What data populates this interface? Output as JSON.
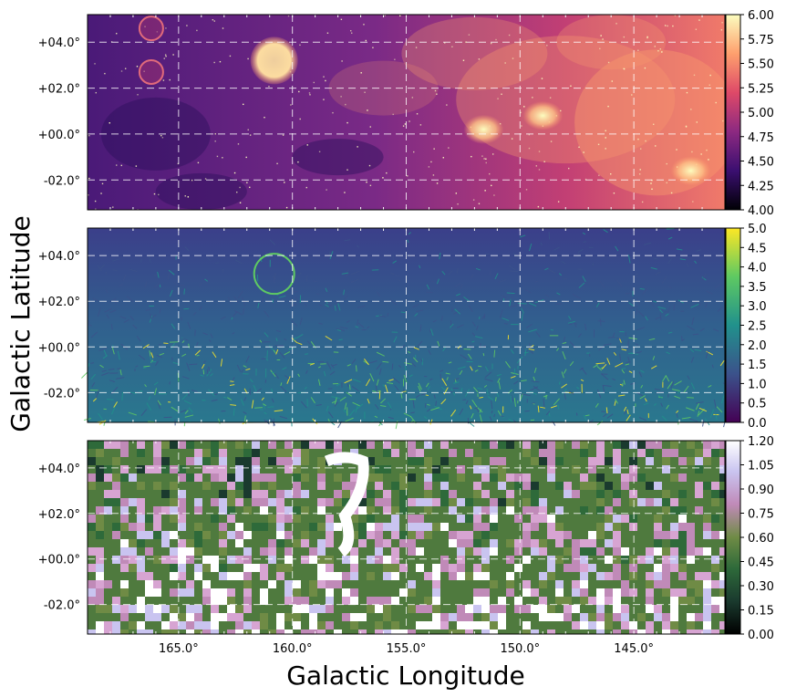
{
  "chart_data": {
    "type": "heatmap",
    "xlabel": "Galactic Longitude",
    "ylabel": "Galactic Latitude",
    "xlim": [
      169.0,
      141.0
    ],
    "ylim": [
      -3.3,
      5.2
    ],
    "x_ticks": [
      {
        "value": 165.0,
        "label": "165.0°"
      },
      {
        "value": 160.0,
        "label": "160.0°"
      },
      {
        "value": 155.0,
        "label": "155.0°"
      },
      {
        "value": 150.0,
        "label": "150.0°"
      },
      {
        "value": 145.0,
        "label": "145.0°"
      }
    ],
    "y_ticks": [
      {
        "value": 4.0,
        "label": "+04.0°"
      },
      {
        "value": 2.0,
        "label": "+02.0°"
      },
      {
        "value": 0.0,
        "label": "+00.0°"
      },
      {
        "value": -2.0,
        "label": "-02.0°"
      }
    ],
    "grid": true,
    "panels": [
      {
        "name": "panel-top",
        "colormap": "magma",
        "colors": [
          "#000004",
          "#3b0f70",
          "#8c2981",
          "#de4968",
          "#fe9f6d",
          "#fcfdbf"
        ],
        "colorbar": {
          "min": 4.0,
          "max": 6.0,
          "ticks": [
            "4.00",
            "4.25",
            "4.50",
            "4.75",
            "5.00",
            "5.25",
            "5.50",
            "5.75",
            "6.00"
          ]
        },
        "features": [
          {
            "l": 160.8,
            "b": 3.2,
            "type": "bright_shell"
          },
          {
            "l": 166.2,
            "b": 4.6,
            "type": "shell"
          },
          {
            "l": 166.2,
            "b": 2.7,
            "type": "shell"
          },
          {
            "l": 151.6,
            "b": 0.2,
            "type": "bright_region"
          },
          {
            "l": 149.0,
            "b": 0.8,
            "type": "bright_region"
          },
          {
            "l": 142.5,
            "b": -1.6,
            "type": "bright_region"
          }
        ]
      },
      {
        "name": "panel-middle",
        "colormap": "viridis",
        "colors": [
          "#440154",
          "#3b528b",
          "#21918c",
          "#5ec962",
          "#fde725"
        ],
        "colorbar": {
          "min": 0.0,
          "max": 5.0,
          "ticks": [
            "0.0",
            "0.5",
            "1.0",
            "1.5",
            "2.0",
            "2.5",
            "3.0",
            "3.5",
            "4.0",
            "4.5",
            "5.0"
          ]
        }
      },
      {
        "name": "panel-bottom",
        "colormap": "cubehelix",
        "colors": [
          "#000000",
          "#1a3a2e",
          "#2e6a3a",
          "#6f8b45",
          "#c08ab8",
          "#c9c4f0",
          "#ffffff"
        ],
        "colorbar": {
          "min": 0.0,
          "max": 1.2,
          "ticks": [
            "0.00",
            "0.15",
            "0.30",
            "0.45",
            "0.60",
            "0.75",
            "0.90",
            "1.05",
            "1.20"
          ]
        }
      }
    ]
  }
}
